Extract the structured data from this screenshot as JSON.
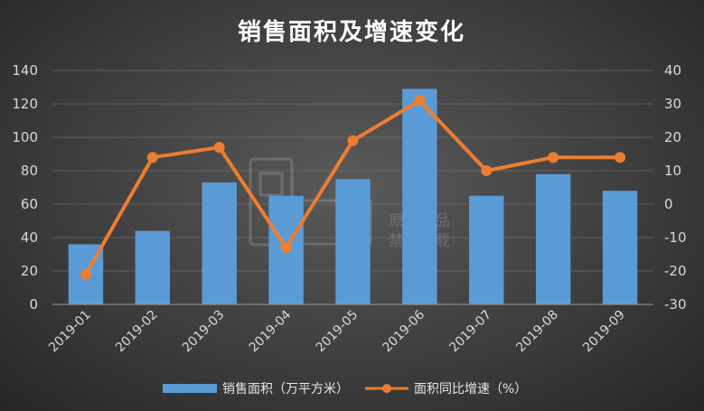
{
  "chart_data": {
    "type": "bar+line",
    "title": "销售面积及增速变化",
    "categories": [
      "2019-01",
      "2019-02",
      "2019-03",
      "2019-04",
      "2019-05",
      "2019-06",
      "2019-07",
      "2019-08",
      "2019-09"
    ],
    "series": [
      {
        "name": "销售面积（万平方米）",
        "type": "bar",
        "axis": "left",
        "color": "#5b9bd5",
        "values": [
          36,
          44,
          73,
          65,
          75,
          129,
          65,
          78,
          68
        ]
      },
      {
        "name": "面积同比增速（%）",
        "type": "line",
        "axis": "right",
        "color": "#ed7d31",
        "values": [
          -21,
          14,
          17,
          -13,
          19,
          31,
          10,
          14,
          14
        ]
      }
    ],
    "y_left": {
      "min": 0,
      "max": 140,
      "step": 20,
      "ticks": [
        "0",
        "20",
        "40",
        "60",
        "80",
        "100",
        "120",
        "140"
      ]
    },
    "y_right": {
      "min": -30,
      "max": 40,
      "step": 10,
      "ticks": [
        "-30",
        "-20",
        "-10",
        "0",
        "10",
        "20",
        "30",
        "40"
      ]
    },
    "grid": true,
    "legend_position": "bottom"
  },
  "watermark": {
    "line1": "原创作品",
    "line2": "禁止转载"
  }
}
